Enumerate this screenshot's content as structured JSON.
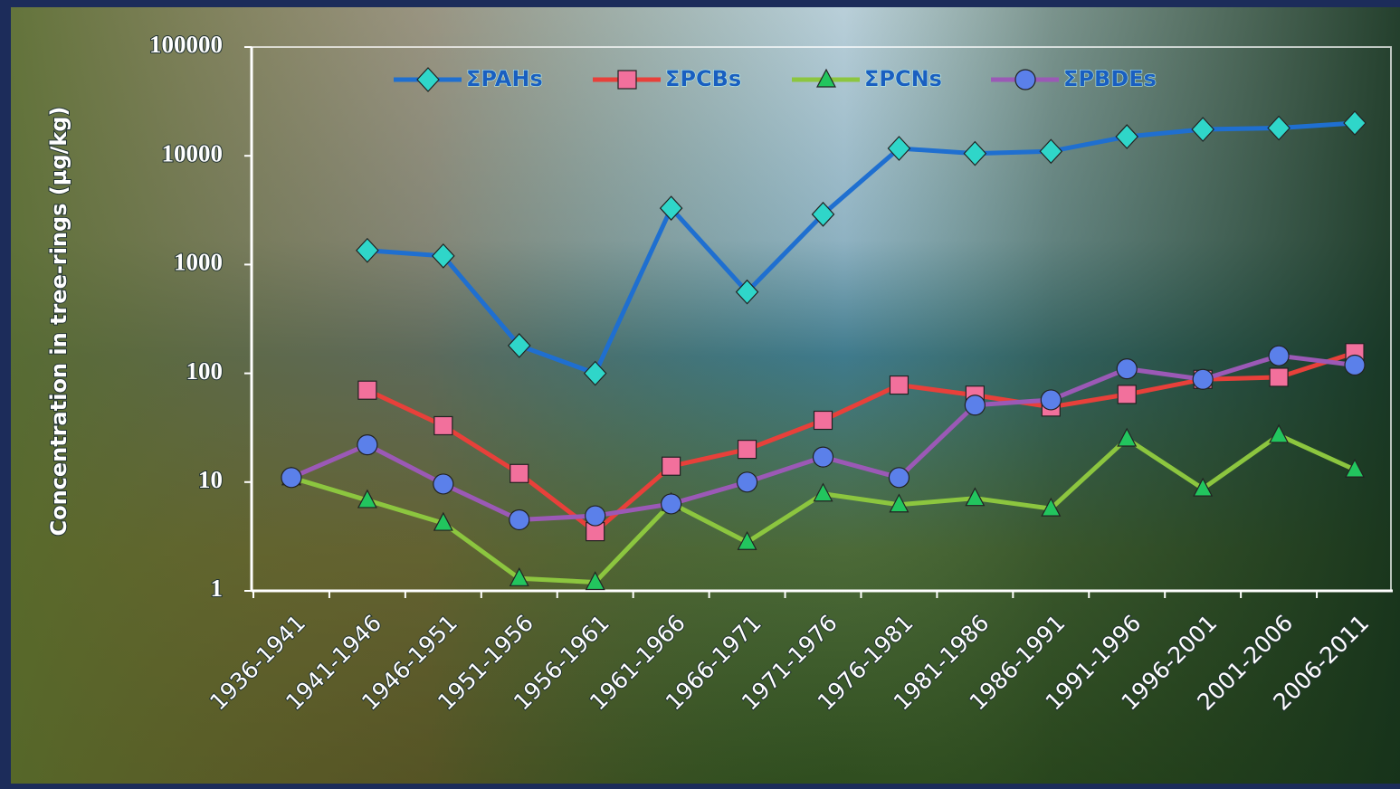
{
  "chart_data": {
    "type": "line",
    "y_label": "Concentration in tree-rings (µg/kg)",
    "categories": [
      "1936-1941",
      "1941-1946",
      "1946-1951",
      "1951-1956",
      "1956-1961",
      "1961-1966",
      "1966-1971",
      "1971-1976",
      "1976-1981",
      "1981-1986",
      "1986-1991",
      "1991-1996",
      "1996-2001",
      "2001-2006",
      "2006-2011"
    ],
    "series": [
      {
        "name": "ΣPAHs",
        "color": "#1f6fd0",
        "marker_color": "#2fd6c9",
        "marker": "diamond",
        "values": [
          null,
          1350,
          1200,
          180,
          100,
          3300,
          560,
          2900,
          11700,
          10500,
          11000,
          15000,
          17500,
          18000,
          20000
        ]
      },
      {
        "name": "ΣPCBs",
        "color": "#e8403a",
        "marker_color": "#f2709c",
        "marker": "square",
        "values": [
          null,
          70,
          33,
          12,
          3.5,
          14,
          20,
          37,
          78,
          63,
          49,
          64,
          88,
          92,
          155
        ]
      },
      {
        "name": "ΣPCNs",
        "color": "#8cc63f",
        "marker_color": "#22c55e",
        "marker": "triangle",
        "values": [
          11,
          6.8,
          4.2,
          1.3,
          1.2,
          6.4,
          2.8,
          7.8,
          6.2,
          7.1,
          5.7,
          25,
          8.7,
          27,
          13
        ]
      },
      {
        "name": "ΣPBDEs",
        "color": "#9b59b6",
        "marker_color": "#5b80ea",
        "marker": "circle",
        "values": [
          11,
          22,
          9.6,
          4.5,
          4.9,
          6.3,
          10,
          17,
          11,
          51,
          57,
          110,
          88,
          145,
          119
        ]
      }
    ],
    "log_y": true,
    "ylim": [
      1,
      100000
    ],
    "yticks": [
      1,
      10,
      100,
      1000,
      10000,
      100000
    ],
    "legend": "top"
  }
}
